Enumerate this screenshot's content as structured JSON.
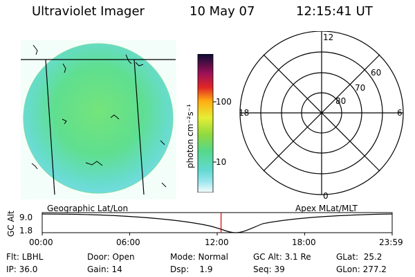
{
  "header": {
    "title": "Ultraviolet Imager",
    "date": "10 May 07",
    "time": "12:15:41 UT"
  },
  "colorbar": {
    "unit_label": "photon cm⁻²s⁻¹",
    "ticks": [
      "100",
      "10"
    ]
  },
  "polar": {
    "mlt_labels": [
      "12",
      "18",
      "6",
      "0"
    ],
    "lat_labels": [
      "60",
      "70",
      "80"
    ]
  },
  "labels": {
    "left_panel": "Geographic Lat/Lon",
    "right_panel": "Apex MLat/MLT",
    "alt_axis_title": "GC Alt",
    "alt_max": "9.0",
    "alt_min": "1.8"
  },
  "timeline": {
    "ticks": [
      "00:00",
      "06:00",
      "12:00",
      "18:00",
      "23:59"
    ],
    "marker_time": "12:15",
    "marker_fraction": 0.511
  },
  "footer": {
    "rows": [
      [
        "Flt: LBHL",
        "Door: Open",
        "Mode: Normal",
        "GC Alt: 3.1 Re",
        "GLat:  25.2"
      ],
      [
        "IP: 36.0",
        "Gain: 14",
        "Dsp:    1.9",
        "Seq: 39",
        "GLon: 277.2"
      ]
    ]
  },
  "colors": {
    "background": "#ffffff",
    "axis": "#000000",
    "marker": "#cc0000",
    "image_fill_primary": "#5fdc8a",
    "image_fill_secondary": "#63d8d8"
  }
}
